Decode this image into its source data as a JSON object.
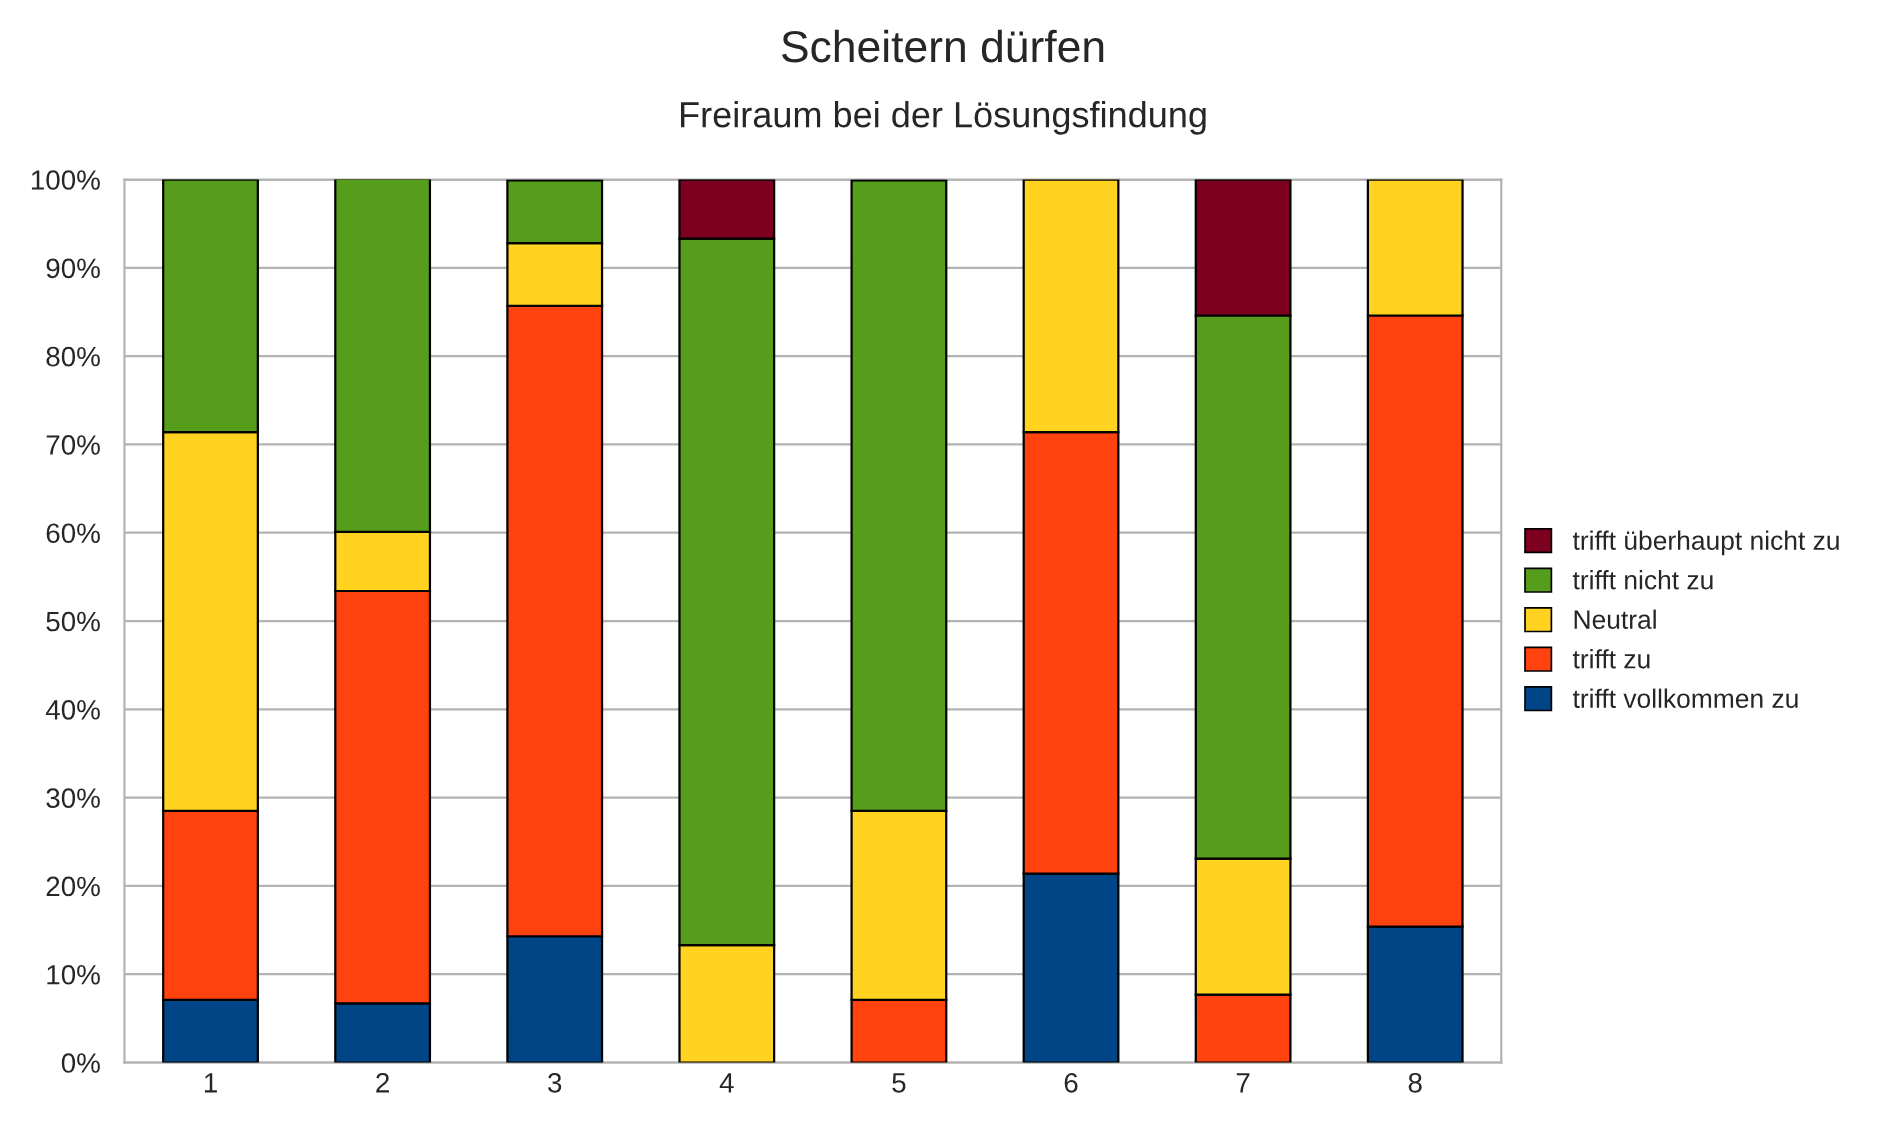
{
  "chart_data": {
    "type": "bar",
    "title": "Scheitern dürfen",
    "subtitle": "Freiraum bei der Lösungsfindung",
    "categories": [
      "1",
      "2",
      "3",
      "4",
      "5",
      "6",
      "7",
      "8"
    ],
    "stacked": true,
    "series": [
      {
        "name": "trifft vollkommen zu",
        "color": "#004586",
        "values": [
          7.1,
          6.7,
          14.3,
          null,
          null,
          21.4,
          null,
          15.4
        ]
      },
      {
        "name": "trifft zu",
        "color": "#ff420e",
        "values": [
          21.4,
          46.7,
          71.4,
          null,
          7.1,
          50.0,
          7.7,
          69.2
        ]
      },
      {
        "name": "Neutral",
        "color": "#ffd320",
        "values": [
          42.9,
          6.7,
          7.1,
          13.3,
          21.4,
          28.6,
          15.4,
          15.4
        ]
      },
      {
        "name": "trifft nicht zu",
        "color": "#579d1c",
        "values": [
          28.6,
          40.0,
          7.1,
          80.0,
          71.4,
          null,
          61.5,
          null
        ]
      },
      {
        "name": "trifft überhaupt nicht zu",
        "color": "#7e0021",
        "values": [
          null,
          null,
          null,
          6.7,
          null,
          null,
          15.4,
          null
        ]
      }
    ],
    "ylim": [
      0,
      100
    ],
    "yticks": [
      {
        "value": 0,
        "label": "0%"
      },
      {
        "value": 10,
        "label": "10%"
      },
      {
        "value": 20,
        "label": "20%"
      },
      {
        "value": 30,
        "label": "30%"
      },
      {
        "value": 40,
        "label": "40%"
      },
      {
        "value": 50,
        "label": "50%"
      },
      {
        "value": 60,
        "label": "60%"
      },
      {
        "value": 70,
        "label": "70%"
      },
      {
        "value": 80,
        "label": "80%"
      },
      {
        "value": 90,
        "label": "90%"
      },
      {
        "value": 100,
        "label": "100%"
      }
    ],
    "grid": "y",
    "legend": "right"
  }
}
